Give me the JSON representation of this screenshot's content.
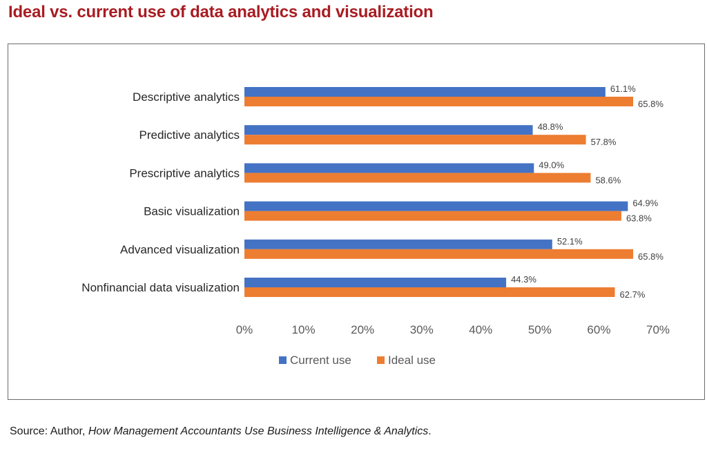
{
  "title": "Ideal vs. current use of data analytics and visualization",
  "source": {
    "prefix": "Source: Author, ",
    "work": "How Management Accountants Use Business Intelligence & Analytics",
    "suffix": "."
  },
  "colors": {
    "current": "#4472c4",
    "ideal": "#ed7d31",
    "title": "#a81c22"
  },
  "chart_data": {
    "type": "bar",
    "orientation": "horizontal",
    "categories": [
      "Descriptive analytics",
      "Predictive analytics",
      "Prescriptive analytics",
      "Basic visualization",
      "Advanced visualization",
      "Nonfinancial data visualization"
    ],
    "series": [
      {
        "name": "Current use",
        "values": [
          61.1,
          48.8,
          49.0,
          64.9,
          52.1,
          44.3
        ],
        "labels": [
          "61.1%",
          "48.8%",
          "49.0%",
          "64.9%",
          "52.1%",
          "44.3%"
        ]
      },
      {
        "name": "Ideal use",
        "values": [
          65.8,
          57.8,
          58.6,
          63.8,
          65.8,
          62.7
        ],
        "labels": [
          "65.8%",
          "57.8%",
          "58.6%",
          "63.8%",
          "65.8%",
          "62.7%"
        ]
      }
    ],
    "xlim": [
      0,
      70
    ],
    "xticks": [
      "0%",
      "10%",
      "20%",
      "30%",
      "40%",
      "50%",
      "60%",
      "70%"
    ],
    "grid": false,
    "legend": "bottom"
  }
}
